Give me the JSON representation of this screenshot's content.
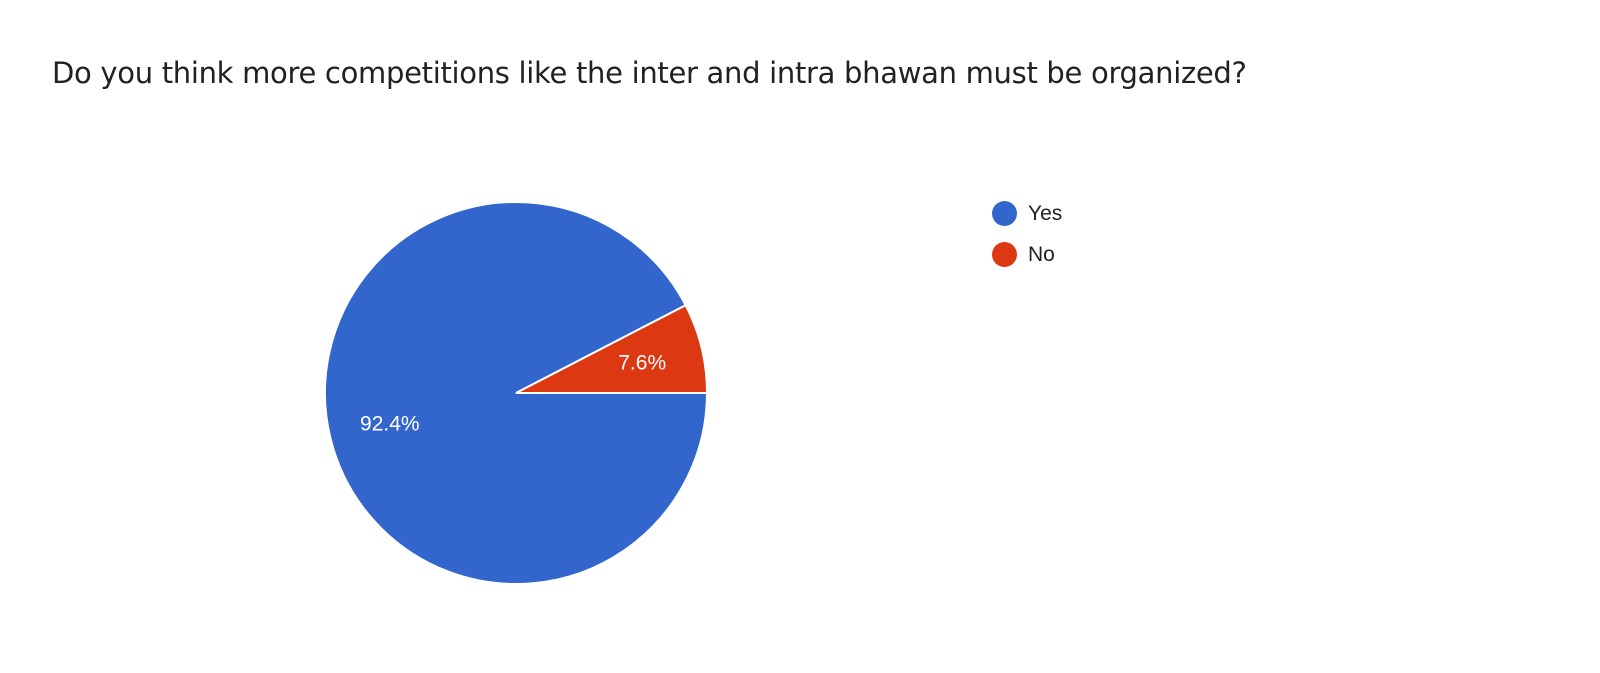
{
  "chart_data": {
    "type": "pie",
    "title": "Do you think more competitions like the inter and intra bhawan must be organized?",
    "categories": [
      "Yes",
      "No"
    ],
    "values": [
      92.4,
      7.6
    ],
    "data_labels": [
      "92.4%",
      "7.6%"
    ],
    "colors": [
      "#3366cc",
      "#dc3912"
    ],
    "legend_position": "right"
  }
}
